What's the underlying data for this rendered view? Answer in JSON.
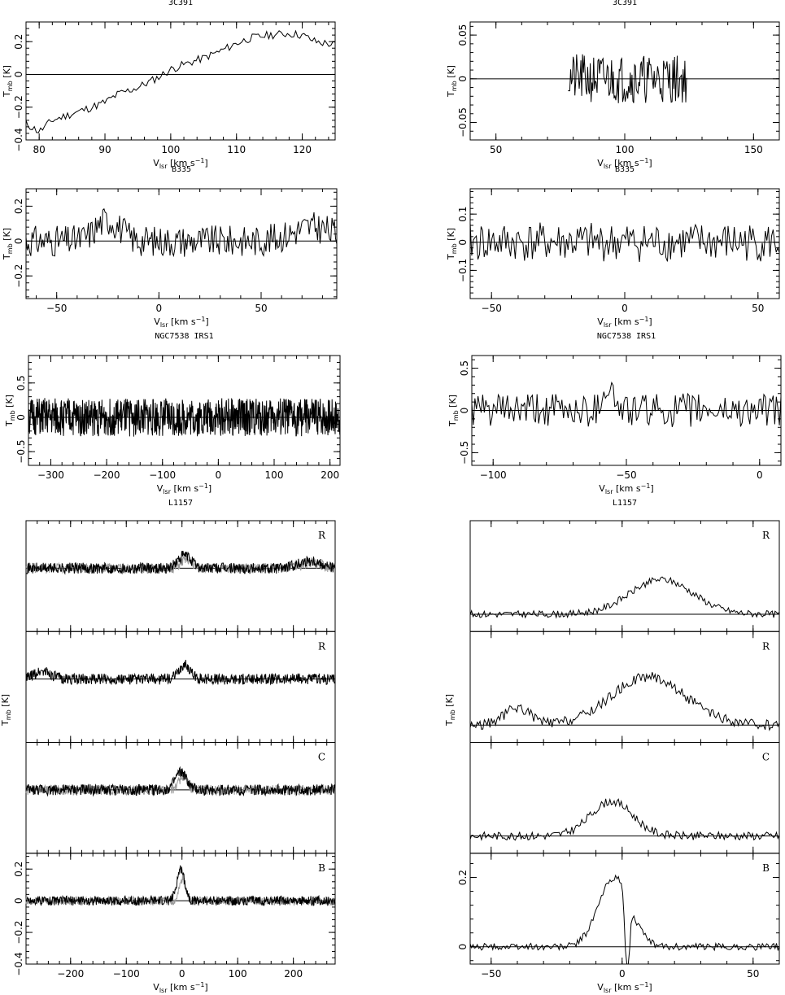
{
  "figure": {
    "ylabel_main": "T",
    "ylabel_sub": "mb",
    "ylabel_unit": " [K]",
    "xlabel_main": "V",
    "xlabel_sub": "lsr",
    "xlabel_unit": " [km s",
    "xlabel_exp": "−1",
    "xlabel_close": "]"
  },
  "chart_data": [
    {
      "type": "line",
      "title": "3C391",
      "xlim": [
        78,
        125
      ],
      "ylim": [
        -0.4,
        0.32
      ],
      "xticks": [
        80,
        90,
        100,
        110,
        120
      ],
      "yticks": [
        -0.4,
        -0.2,
        0,
        0.2
      ],
      "xlabel": "Vlsr [km s−1]",
      "ylabel": "Tmb [K]",
      "series": [
        {
          "color": "#000000",
          "kind": "trend",
          "x": [
            78,
            80,
            82,
            85,
            88,
            90,
            92,
            95,
            98,
            100,
            102,
            105,
            108,
            110,
            112,
            115,
            118,
            120,
            122,
            125
          ],
          "y": [
            -0.3,
            -0.35,
            -0.28,
            -0.24,
            -0.2,
            -0.17,
            -0.12,
            -0.08,
            -0.02,
            0.03,
            0.06,
            0.1,
            0.15,
            0.19,
            0.22,
            0.24,
            0.25,
            0.24,
            0.2,
            0.18
          ],
          "noise": 0.025,
          "count": 150,
          "seed": 11
        }
      ]
    },
    {
      "type": "line",
      "title": "3C391",
      "xlim": [
        40,
        160
      ],
      "ylim": [
        -0.07,
        0.065
      ],
      "xticks": [
        50,
        100,
        150
      ],
      "yticks": [
        -0.05,
        0,
        0.05
      ],
      "xlabel": "Vlsr [km s−1]",
      "ylabel": "Tmb [K]",
      "series": [
        {
          "color": "#000000",
          "kind": "noise",
          "xrange": [
            78,
            124
          ],
          "amp": 0.028,
          "count": 140,
          "seed": 21
        }
      ]
    },
    {
      "type": "line",
      "title": "B335",
      "xlim": [
        -65,
        87
      ],
      "ylim": [
        -0.33,
        0.3
      ],
      "xticks": [
        -50,
        0,
        50
      ],
      "yticks": [
        -0.2,
        0,
        0.2
      ],
      "xlabel": "Vlsr [km s−1]",
      "ylabel": "Tmb [K]",
      "series": [
        {
          "color": "#000000",
          "kind": "noise",
          "xrange": [
            -65,
            87
          ],
          "amp": 0.09,
          "count": 260,
          "seed": 31,
          "bumps": [
            {
              "c": -25,
              "w": 6,
              "a": 0.12
            },
            {
              "c": 75,
              "w": 10,
              "a": 0.08
            }
          ]
        }
      ]
    },
    {
      "type": "line",
      "title": "B335",
      "xlim": [
        -58,
        58
      ],
      "ylim": [
        -0.2,
        0.19
      ],
      "xticks": [
        -50,
        0,
        50
      ],
      "yticks": [
        -0.1,
        0,
        0.1
      ],
      "xlabel": "Vlsr [km s−1]",
      "ylabel": "Tmb [K]",
      "series": [
        {
          "color": "#000000",
          "kind": "noise",
          "xrange": [
            -58,
            58
          ],
          "amp": 0.07,
          "count": 200,
          "seed": 41
        }
      ]
    },
    {
      "type": "line",
      "title": "NGC7538 IRS1",
      "xlim": [
        -340,
        218
      ],
      "ylim": [
        -0.7,
        0.9
      ],
      "xticks": [
        -300,
        -200,
        -100,
        0,
        100,
        200
      ],
      "yticks": [
        -0.5,
        0,
        0.5
      ],
      "xlabel": "Vlsr [km s−1]",
      "ylabel": "Tmb [K]",
      "series": [
        {
          "color": "#000000",
          "kind": "noise",
          "xrange": [
            -340,
            218
          ],
          "amp": 0.28,
          "count": 900,
          "seed": 51
        }
      ]
    },
    {
      "type": "line",
      "title": "NGC7538 IRS1",
      "xlim": [
        -108,
        8
      ],
      "ylim": [
        -0.65,
        0.65
      ],
      "xticks": [
        -100,
        -50,
        0
      ],
      "yticks": [
        -0.5,
        0,
        0.5
      ],
      "xlabel": "Vlsr [km s−1]",
      "ylabel": "Tmb [K]",
      "series": [
        {
          "color": "#000000",
          "kind": "noise",
          "xrange": [
            -108,
            8
          ],
          "amp": 0.2,
          "count": 200,
          "seed": 61,
          "bumps": [
            {
              "c": -57,
              "w": 2,
              "a": 0.3
            }
          ]
        }
      ]
    }
  ],
  "stacks": [
    {
      "title": "L1157",
      "xlim": [
        -280,
        275
      ],
      "xticks": [
        -200,
        -100,
        0,
        100,
        200
      ],
      "xlabel": "Vlsr [km s−1]",
      "ylabel": "Tmb [K]",
      "panels": [
        {
          "label": "R",
          "ylim": [
            -0.4,
            0.3
          ],
          "yticks": [],
          "count": 700,
          "seed": 71,
          "amp": 0.035,
          "base": 0.0,
          "bumps": [
            {
              "c": 5,
              "w": 12,
              "a": 0.08
            },
            {
              "c": 230,
              "w": 20,
              "a": 0.05
            }
          ],
          "gray": true
        },
        {
          "label": "R",
          "ylim": [
            -0.4,
            0.3
          ],
          "yticks": [],
          "count": 700,
          "seed": 72,
          "amp": 0.035,
          "base": 0.0,
          "bumps": [
            {
              "c": 5,
              "w": 10,
              "a": 0.09
            },
            {
              "c": -250,
              "w": 15,
              "a": 0.05
            }
          ],
          "gray": false
        },
        {
          "label": "C",
          "ylim": [
            -0.4,
            0.3
          ],
          "yticks": [],
          "count": 700,
          "seed": 73,
          "amp": 0.035,
          "base": 0.0,
          "bumps": [
            {
              "c": -2,
              "w": 10,
              "a": 0.11
            }
          ],
          "gray": true
        },
        {
          "label": "B",
          "ylim": [
            -0.4,
            0.3
          ],
          "yticks": [
            -0.4,
            -0.2,
            0,
            0.2
          ],
          "count": 700,
          "seed": 74,
          "amp": 0.03,
          "base": 0.0,
          "bumps": [
            {
              "c": -2,
              "w": 7,
              "a": 0.2
            }
          ],
          "gray": true
        }
      ]
    },
    {
      "title": "L1157",
      "xlim": [
        -58,
        60
      ],
      "xticks": [
        -50,
        0,
        50
      ],
      "xlabel": "Vlsr [km s−1]",
      "ylabel": "Tmb [K]",
      "panels": [
        {
          "label": "R",
          "ylim": [
            -0.05,
            0.27
          ],
          "yticks": [],
          "count": 220,
          "seed": 81,
          "amp": 0.01,
          "base": 0.0,
          "bumps": [
            {
              "c": 15,
              "w": 12,
              "a": 0.1
            }
          ],
          "gray": false
        },
        {
          "label": "R",
          "ylim": [
            -0.05,
            0.27
          ],
          "yticks": [],
          "count": 220,
          "seed": 82,
          "amp": 0.015,
          "base": 0.0,
          "bumps": [
            {
              "c": 10,
              "w": 14,
              "a": 0.14
            },
            {
              "c": -40,
              "w": 5,
              "a": 0.05
            }
          ],
          "gray": false
        },
        {
          "label": "C",
          "ylim": [
            -0.05,
            0.27
          ],
          "yticks": [],
          "count": 220,
          "seed": 83,
          "amp": 0.012,
          "base": 0.0,
          "bumps": [
            {
              "c": -4,
              "w": 8,
              "a": 0.1
            }
          ],
          "gray": false
        },
        {
          "label": "B",
          "ylim": [
            -0.05,
            0.27
          ],
          "yticks": [
            0,
            0.2
          ],
          "count": 220,
          "seed": 84,
          "amp": 0.01,
          "base": 0.0,
          "bumps": [
            {
              "c": -3,
              "w": 6,
              "a": 0.2
            }
          ],
          "gray": false,
          "dip": {
            "c": 2,
            "w": 0.8,
            "a": -0.25
          }
        }
      ]
    }
  ]
}
